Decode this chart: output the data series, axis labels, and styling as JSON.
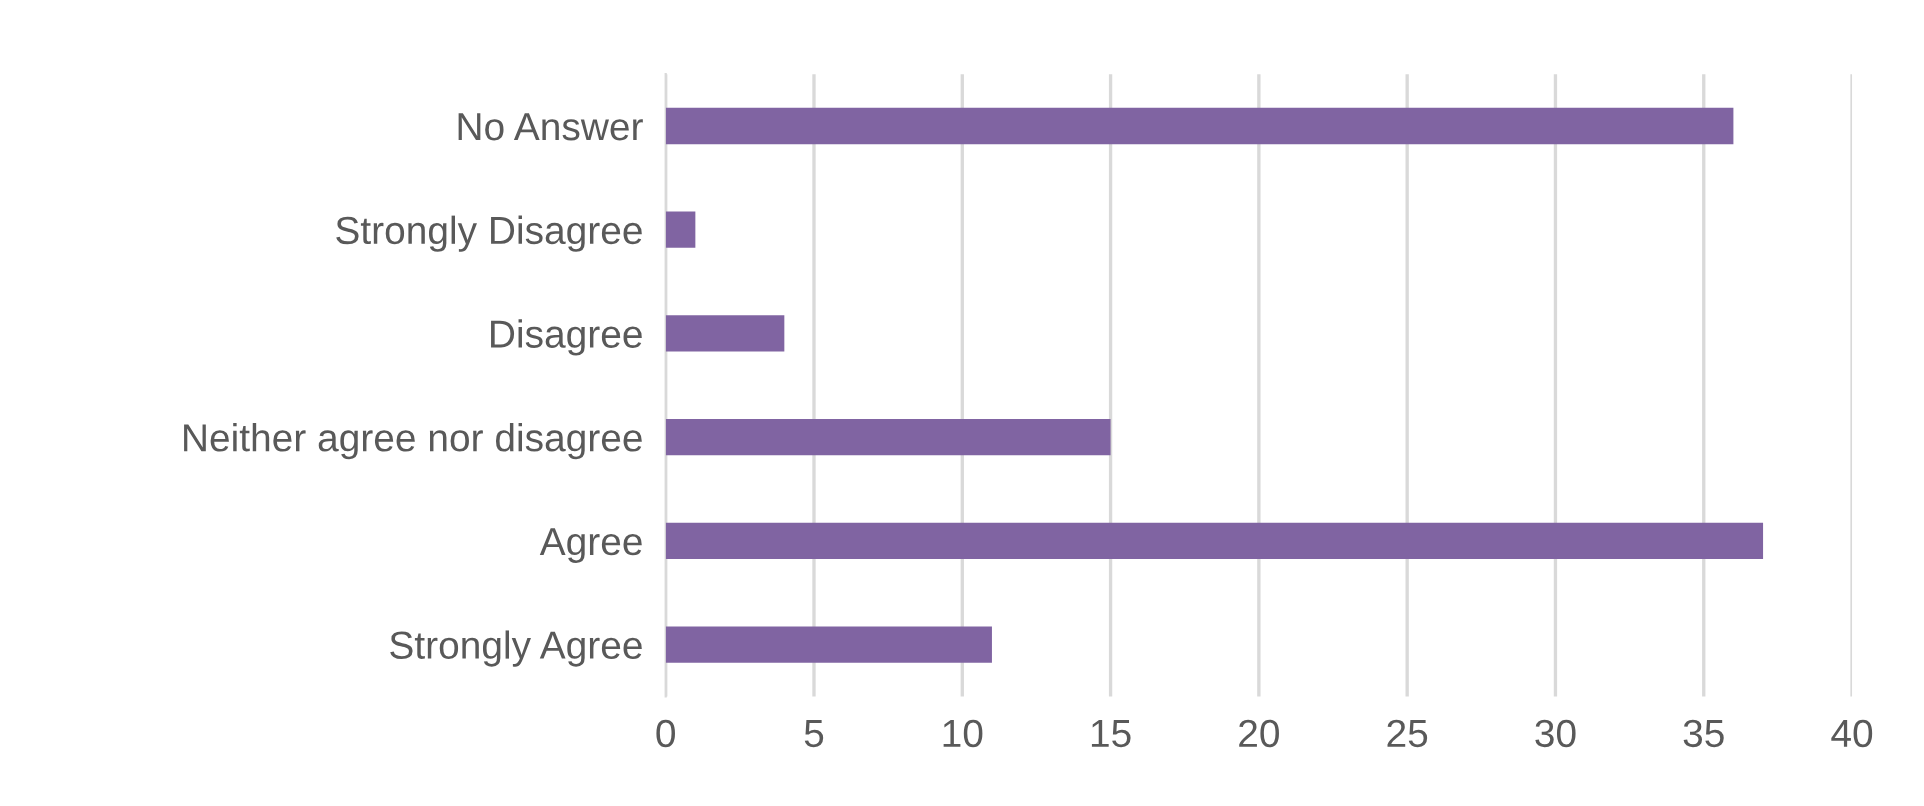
{
  "chart_data": {
    "type": "bar",
    "orientation": "horizontal",
    "categories": [
      "No Answer",
      "Strongly Disagree",
      "Disagree",
      "Neither agree nor disagree",
      "Agree",
      "Strongly Agree"
    ],
    "values": [
      36,
      1,
      4,
      15,
      37,
      11
    ],
    "color": "#8064a2",
    "xlim": [
      0,
      40
    ],
    "xticks": [
      0,
      5,
      10,
      15,
      20,
      25,
      30,
      35,
      40
    ],
    "grid": "x",
    "legend": false
  }
}
